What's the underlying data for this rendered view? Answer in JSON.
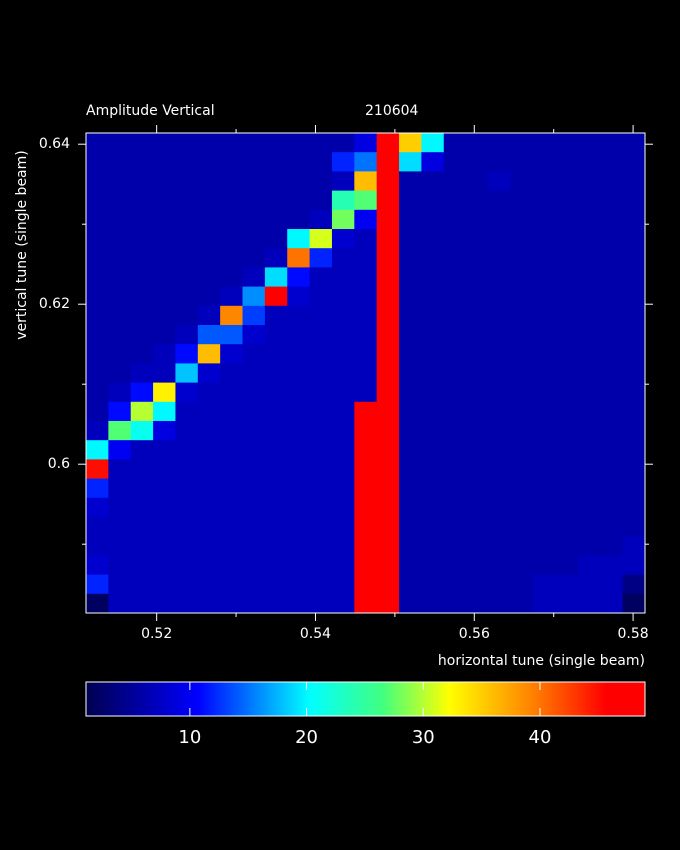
{
  "chart_data": {
    "type": "heatmap",
    "title": "Amplitude Vertical",
    "subtitle": "210604",
    "xlabel": "horizontal tune (single beam)",
    "ylabel": "vertical tune (single beam)",
    "xlim": [
      0.5111,
      0.5815
    ],
    "ylim": [
      0.5814,
      0.6414
    ],
    "xticks": [
      0.52,
      0.54,
      0.56,
      0.58
    ],
    "yticks": [
      0.6,
      0.62,
      0.64
    ],
    "xminorticks": [
      0.53,
      0.55,
      0.57
    ],
    "yminorticks": [
      0.59,
      0.61,
      0.63
    ],
    "zlim": [
      1.1,
      49
    ],
    "zticks": [
      10,
      20,
      30,
      40
    ],
    "colorscale": [
      [
        0,
        "#000050"
      ],
      [
        0.2,
        "#0000ff"
      ],
      [
        0.4,
        "#00ffff"
      ],
      [
        0.53,
        "#40ff80"
      ],
      [
        0.65,
        "#ffff00"
      ],
      [
        0.8,
        "#ff8000"
      ],
      [
        0.93,
        "#ff0000"
      ],
      [
        1,
        "#ff0000"
      ]
    ],
    "z": [
      [
        6,
        6,
        6,
        6,
        6,
        6,
        6,
        6,
        6,
        6,
        6,
        6,
        9,
        48,
        35,
        20,
        6,
        6,
        6,
        6,
        6,
        6,
        6,
        6,
        6
      ],
      [
        6,
        6,
        6,
        6,
        6,
        6,
        6,
        6,
        6,
        6,
        6,
        12,
        15,
        48,
        19,
        9,
        6,
        6,
        6,
        6,
        6,
        6,
        6,
        6,
        6
      ],
      [
        6,
        6,
        6,
        6,
        6,
        6,
        6,
        6,
        6,
        6,
        6,
        7,
        36,
        48,
        6,
        6,
        6,
        6,
        7,
        6,
        6,
        6,
        6,
        6,
        6
      ],
      [
        6,
        6,
        6,
        6,
        6,
        6,
        6,
        6,
        6,
        6,
        6,
        24,
        27,
        48,
        6,
        6,
        6,
        6,
        6,
        6,
        6,
        6,
        6,
        6,
        6
      ],
      [
        6,
        6,
        6,
        6,
        6,
        6,
        6,
        6,
        6,
        6,
        7,
        28,
        10,
        48,
        6,
        6,
        6,
        6,
        6,
        6,
        6,
        6,
        6,
        6,
        6
      ],
      [
        6,
        6,
        6,
        6,
        6,
        6,
        6,
        6,
        6,
        20,
        31,
        8,
        7,
        48,
        6,
        6,
        6,
        6,
        6,
        6,
        6,
        6,
        6,
        6,
        6
      ],
      [
        6,
        6,
        6,
        6,
        6,
        6,
        6,
        6,
        7,
        40,
        12,
        7,
        7,
        48,
        6,
        6,
        6,
        6,
        6,
        6,
        6,
        6,
        6,
        6,
        6
      ],
      [
        6,
        6,
        6,
        6,
        6,
        6,
        6,
        7,
        19,
        11,
        7,
        7,
        7,
        48,
        6,
        6,
        6,
        6,
        6,
        6,
        6,
        6,
        6,
        6,
        6
      ],
      [
        6,
        6,
        6,
        6,
        6,
        6,
        7,
        16,
        47,
        8,
        7,
        7,
        7,
        48,
        6,
        6,
        6,
        6,
        6,
        6,
        6,
        6,
        6,
        6,
        6
      ],
      [
        6,
        6,
        6,
        6,
        6,
        7,
        39,
        13,
        7,
        7,
        7,
        7,
        7,
        48,
        6,
        6,
        6,
        6,
        6,
        6,
        6,
        6,
        6,
        6,
        6
      ],
      [
        6,
        6,
        6,
        6,
        7,
        14,
        14,
        8,
        7,
        7,
        7,
        7,
        7,
        48,
        6,
        6,
        6,
        6,
        6,
        6,
        6,
        6,
        6,
        6,
        6
      ],
      [
        6,
        6,
        6,
        7,
        11,
        36,
        8,
        7,
        7,
        7,
        7,
        7,
        7,
        48,
        6,
        6,
        6,
        6,
        6,
        6,
        6,
        6,
        6,
        6,
        6
      ],
      [
        6,
        6,
        7,
        7,
        18,
        8,
        7,
        7,
        7,
        7,
        7,
        7,
        7,
        48,
        6,
        6,
        6,
        6,
        6,
        6,
        6,
        6,
        6,
        6,
        6
      ],
      [
        6,
        7,
        11,
        33,
        8,
        7,
        7,
        7,
        7,
        7,
        7,
        7,
        7,
        48,
        6,
        6,
        6,
        6,
        6,
        6,
        6,
        6,
        6,
        6,
        6
      ],
      [
        6,
        11,
        30,
        20,
        7,
        7,
        7,
        7,
        7,
        7,
        7,
        7,
        48,
        48,
        6,
        6,
        6,
        6,
        6,
        6,
        6,
        6,
        6,
        6,
        6
      ],
      [
        7,
        27,
        21,
        9,
        7,
        7,
        7,
        7,
        7,
        7,
        7,
        7,
        48,
        48,
        6,
        6,
        6,
        6,
        6,
        6,
        6,
        6,
        6,
        6,
        6
      ],
      [
        20,
        10,
        7,
        7,
        7,
        7,
        7,
        7,
        7,
        7,
        7,
        7,
        48,
        48,
        6,
        6,
        6,
        6,
        6,
        6,
        6,
        6,
        6,
        6,
        6
      ],
      [
        45,
        7,
        7,
        7,
        7,
        7,
        7,
        7,
        7,
        7,
        7,
        7,
        48,
        48,
        6,
        6,
        6,
        6,
        6,
        6,
        6,
        6,
        6,
        6,
        6
      ],
      [
        12,
        7,
        7,
        7,
        7,
        7,
        7,
        7,
        7,
        7,
        7,
        7,
        48,
        48,
        6,
        6,
        6,
        6,
        6,
        6,
        6,
        6,
        6,
        6,
        6
      ],
      [
        8,
        7,
        7,
        7,
        7,
        7,
        7,
        7,
        7,
        7,
        7,
        7,
        48,
        48,
        6,
        6,
        6,
        6,
        6,
        6,
        6,
        6,
        6,
        6,
        6
      ],
      [
        7,
        7,
        7,
        7,
        7,
        7,
        7,
        7,
        7,
        7,
        7,
        7,
        48,
        48,
        6,
        6,
        6,
        6,
        6,
        6,
        6,
        6,
        6,
        6,
        6
      ],
      [
        7,
        7,
        7,
        7,
        7,
        7,
        7,
        7,
        7,
        7,
        7,
        7,
        48,
        48,
        6,
        6,
        6,
        6,
        6,
        6,
        6,
        6,
        6,
        6,
        7
      ],
      [
        8,
        7,
        7,
        7,
        7,
        7,
        7,
        7,
        7,
        7,
        7,
        7,
        48,
        48,
        6,
        6,
        6,
        6,
        6,
        6,
        6,
        6,
        7,
        7,
        7
      ],
      [
        12,
        7,
        7,
        7,
        7,
        7,
        7,
        7,
        7,
        7,
        7,
        7,
        48,
        48,
        6,
        6,
        6,
        6,
        6,
        6,
        7,
        7,
        7,
        7,
        4
      ],
      [
        2,
        7,
        7,
        7,
        7,
        7,
        7,
        7,
        7,
        7,
        7,
        7,
        48,
        48,
        6,
        6,
        6,
        6,
        6,
        6,
        7,
        7,
        7,
        7,
        2
      ]
    ]
  }
}
